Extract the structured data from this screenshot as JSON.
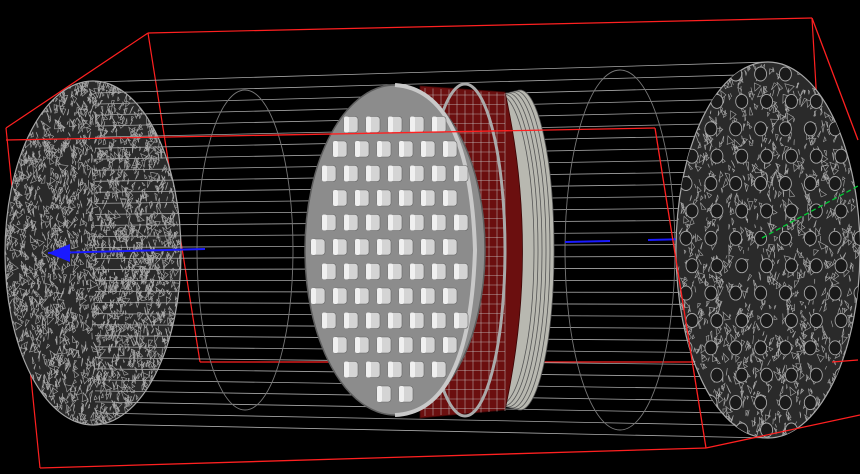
{
  "viewer": {
    "background_color": "#000000",
    "colors": {
      "bounding_box": "#ff2020",
      "wireframe": "#a8a8a8",
      "detector_face": "#8c8c8c",
      "detector_holes": "#d4d4d4",
      "absorber_layer": "#6b0f0f",
      "ring_plates": "#b8b8b0",
      "beam_axis": "#1a1aff",
      "y_axis": "#00cc33"
    },
    "components": [
      "bounding-box",
      "mesh-endcap-left",
      "mesh-endcap-right",
      "wireframe-cylinder",
      "perforated-detector-disk",
      "absorber-layers",
      "beam-axis",
      "y-axis-marker"
    ]
  }
}
